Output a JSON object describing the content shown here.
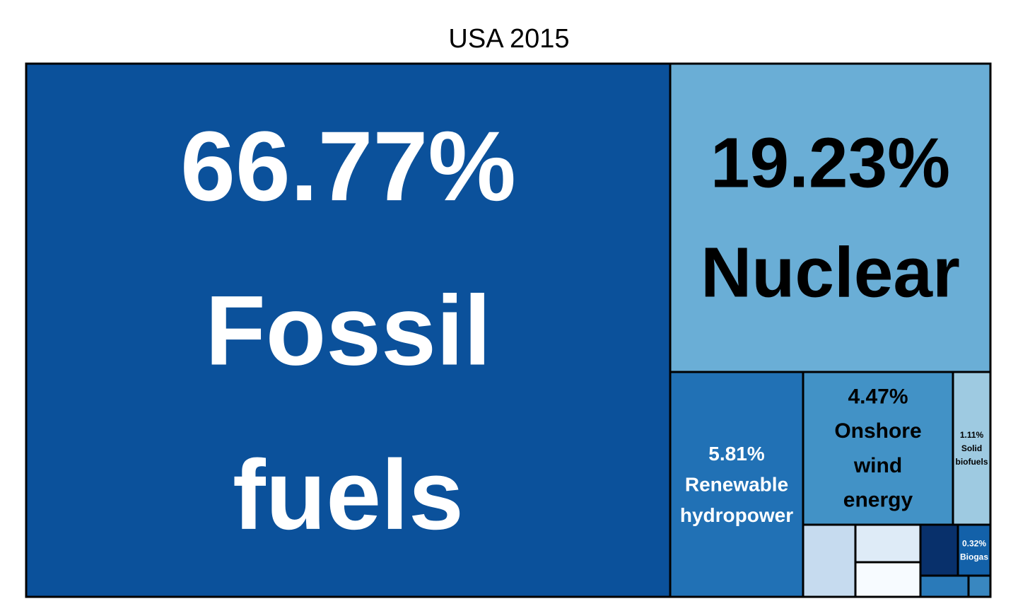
{
  "chart_data": {
    "type": "treemap",
    "title": "USA 2015",
    "unit": "%",
    "items": [
      {
        "pct": "66.77%",
        "name": "Fossil fuels",
        "value": 66.77,
        "color": "#0b519b",
        "text_color": "#ffffff",
        "lines": [
          "66.77%",
          "Fossil",
          "fuels"
        ]
      },
      {
        "pct": "19.23%",
        "name": "Nuclear",
        "value": 19.23,
        "color": "#6aaed6",
        "text_color": "#000000",
        "lines": [
          "19.23%",
          "Nuclear"
        ]
      },
      {
        "pct": "5.81%",
        "name": "Renewable hydropower",
        "value": 5.81,
        "color": "#2171b5",
        "text_color": "#ffffff",
        "lines": [
          "5.81%",
          "Renewable",
          "hydropower"
        ]
      },
      {
        "pct": "4.47%",
        "name": "Onshore wind energy",
        "value": 4.47,
        "color": "#4292c6",
        "text_color": "#000000",
        "lines": [
          "4.47%",
          "Onshore",
          "wind",
          "energy"
        ]
      },
      {
        "pct": "1.11%",
        "name": "Solid biofuels",
        "value": 1.11,
        "color": "#9ecae1",
        "text_color": "#000000",
        "lines": [
          "1.11%",
          "Solid",
          "biofuels"
        ]
      },
      {
        "pct": "0.32%",
        "name": "Biogas",
        "value": 0.32,
        "color": "#1361a9",
        "text_color": "#ffffff",
        "lines": [
          "0.32%",
          "Biogas"
        ]
      }
    ],
    "unlabeled_tiles": [
      {
        "color": "#c6dbef"
      },
      {
        "color": "#deebf7"
      },
      {
        "color": "#f7fbff"
      },
      {
        "color": "#08306b"
      },
      {
        "color": "#2a7ab9"
      },
      {
        "color": "#3987c0"
      }
    ]
  }
}
